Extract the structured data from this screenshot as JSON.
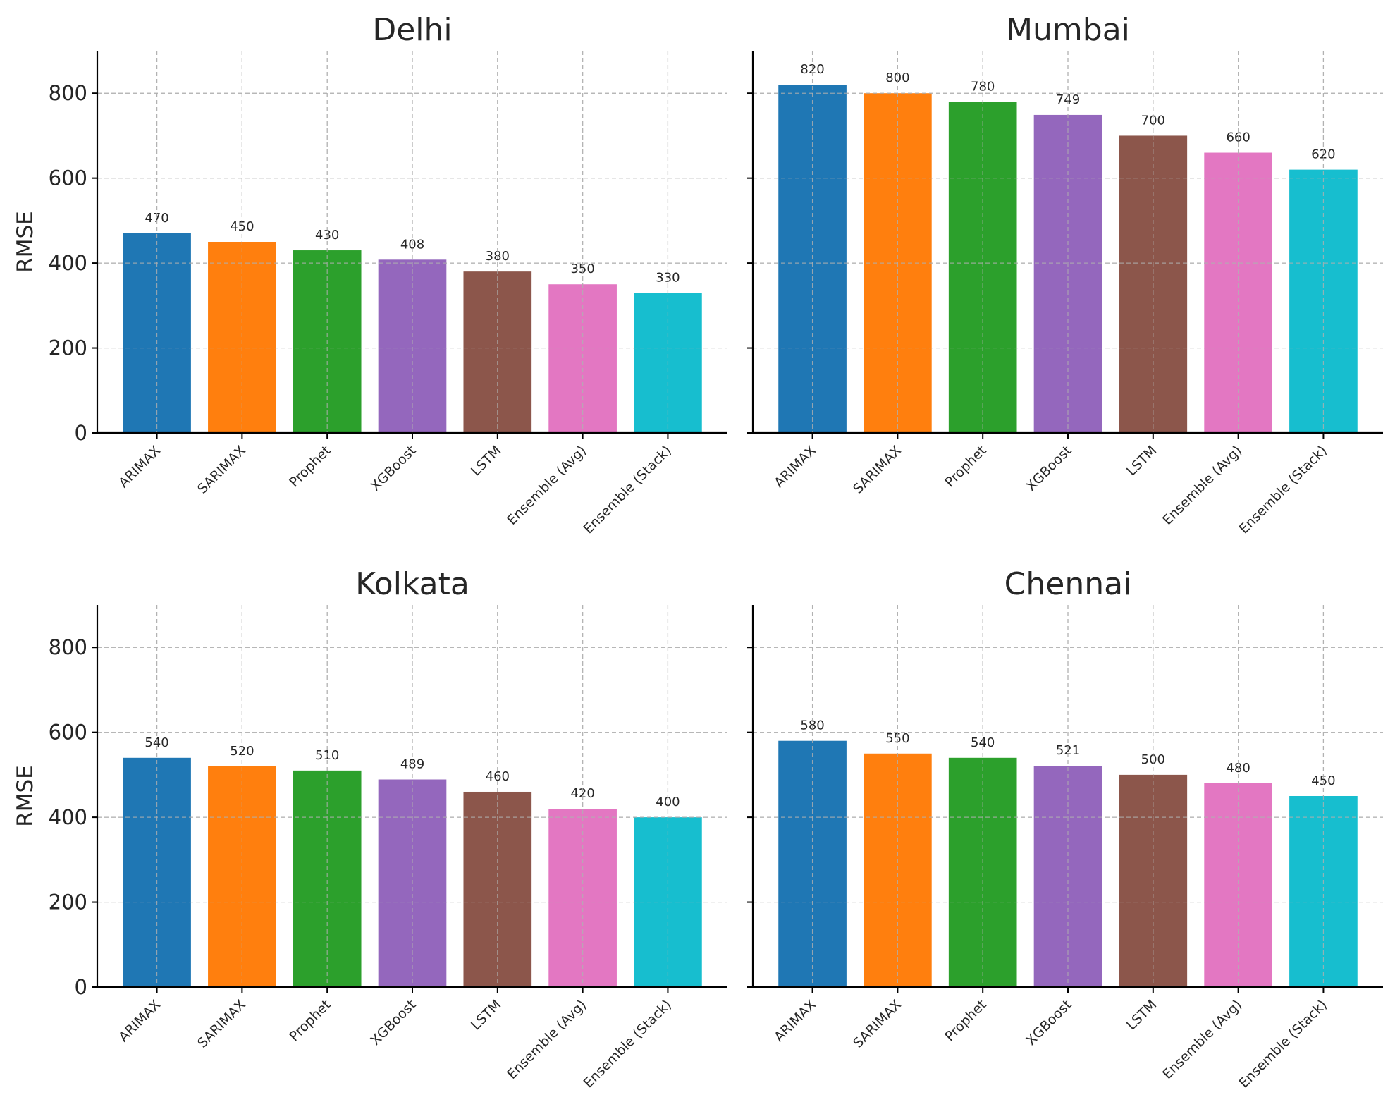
{
  "chart_data": [
    {
      "type": "bar",
      "title": "Delhi",
      "ylabel": "RMSE",
      "ylim": [
        0,
        900
      ],
      "yticks": [
        0,
        200,
        400,
        600,
        800
      ],
      "categories": [
        "ARIMAX",
        "SARIMAX",
        "Prophet",
        "XGBoost",
        "LSTM",
        "Ensemble (Avg)",
        "Ensemble (Stack)"
      ],
      "values": [
        470,
        450,
        430,
        408,
        380,
        350,
        330
      ],
      "grid": true
    },
    {
      "type": "bar",
      "title": "Mumbai",
      "ylabel": "",
      "ylim": [
        0,
        900
      ],
      "yticks": [
        0,
        200,
        400,
        600,
        800
      ],
      "categories": [
        "ARIMAX",
        "SARIMAX",
        "Prophet",
        "XGBoost",
        "LSTM",
        "Ensemble (Avg)",
        "Ensemble (Stack)"
      ],
      "values": [
        820,
        800,
        780,
        749,
        700,
        660,
        620
      ],
      "grid": true
    },
    {
      "type": "bar",
      "title": "Kolkata",
      "ylabel": "RMSE",
      "ylim": [
        0,
        900
      ],
      "yticks": [
        0,
        200,
        400,
        600,
        800
      ],
      "categories": [
        "ARIMAX",
        "SARIMAX",
        "Prophet",
        "XGBoost",
        "LSTM",
        "Ensemble (Avg)",
        "Ensemble (Stack)"
      ],
      "values": [
        540,
        520,
        510,
        489,
        460,
        420,
        400
      ],
      "grid": true
    },
    {
      "type": "bar",
      "title": "Chennai",
      "ylabel": "",
      "ylim": [
        0,
        900
      ],
      "yticks": [
        0,
        200,
        400,
        600,
        800
      ],
      "categories": [
        "ARIMAX",
        "SARIMAX",
        "Prophet",
        "XGBoost",
        "LSTM",
        "Ensemble (Avg)",
        "Ensemble (Stack)"
      ],
      "values": [
        580,
        550,
        540,
        521,
        500,
        480,
        450
      ],
      "grid": true
    }
  ],
  "colors": [
    "#1f77b4",
    "#ff7f0e",
    "#2ca02c",
    "#9467bd",
    "#8c564b",
    "#e377c2",
    "#17becf"
  ]
}
